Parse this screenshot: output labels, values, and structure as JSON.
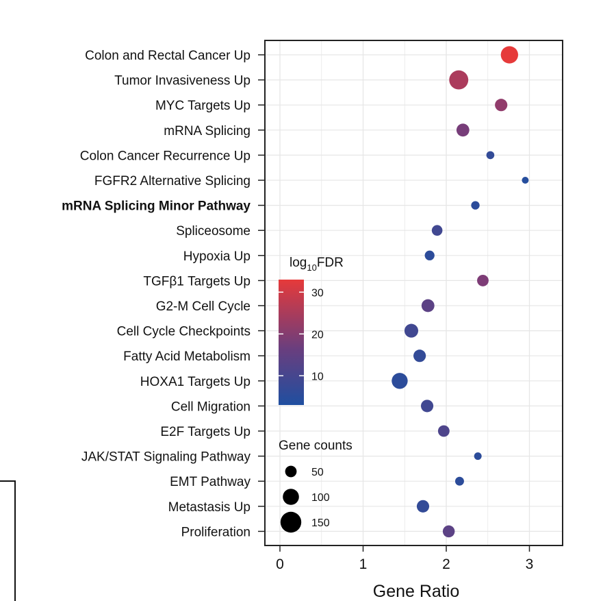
{
  "chart_data": {
    "type": "scatter",
    "subtype": "dot-plot",
    "xlabel": "Gene Ratio",
    "ylabel": "",
    "xlim": [
      -0.2,
      3.4
    ],
    "x_ticks": [
      "0",
      "1",
      "2",
      "3"
    ],
    "x_tick_values": [
      0,
      1,
      2,
      3
    ],
    "grid": true,
    "color_legend": {
      "title_main": "log",
      "title_sub": "10",
      "title_tail": "FDR",
      "min": 3,
      "max": 33,
      "ticks": [
        "10",
        "20",
        "30"
      ],
      "tick_values": [
        10,
        20,
        30
      ],
      "low_color": "#1f4fa0",
      "mid_color": "#7a3c78",
      "high_color": "#e63a3a"
    },
    "size_legend": {
      "title": "Gene counts",
      "labels": [
        "50",
        "100",
        "150"
      ],
      "values": [
        50,
        100,
        150
      ]
    },
    "series": [
      {
        "term": "Colon and Rectal Cancer Up",
        "gene_ratio": 2.76,
        "log10_fdr": 33,
        "gene_count": 130
      },
      {
        "term": "Tumor Invasiveness Up",
        "gene_ratio": 2.15,
        "log10_fdr": 24,
        "gene_count": 150
      },
      {
        "term": "MYC Targets Up",
        "gene_ratio": 2.66,
        "log10_fdr": 20,
        "gene_count": 75
      },
      {
        "term": "mRNA Splicing",
        "gene_ratio": 2.2,
        "log10_fdr": 16,
        "gene_count": 80
      },
      {
        "term": "Colon Cancer Recurrence Up",
        "gene_ratio": 2.53,
        "log10_fdr": 6,
        "gene_count": 25
      },
      {
        "term": "FGFR2 Alternative Splicing",
        "gene_ratio": 2.95,
        "log10_fdr": 4,
        "gene_count": 12
      },
      {
        "term": "mRNA Splicing Minor Pathway",
        "gene_ratio": 2.35,
        "log10_fdr": 5,
        "gene_count": 30
      },
      {
        "term": "Spliceosome",
        "gene_ratio": 1.89,
        "log10_fdr": 8,
        "gene_count": 55
      },
      {
        "term": "Hypoxia Up",
        "gene_ratio": 1.8,
        "log10_fdr": 5,
        "gene_count": 45
      },
      {
        "term": "TGFβ1 Targets Up",
        "gene_ratio": 2.44,
        "log10_fdr": 17,
        "gene_count": 65
      },
      {
        "term": "G2-M Cell Cycle",
        "gene_ratio": 1.78,
        "log10_fdr": 12,
        "gene_count": 80
      },
      {
        "term": "Cell Cycle Checkpoints",
        "gene_ratio": 1.58,
        "log10_fdr": 8,
        "gene_count": 90
      },
      {
        "term": "Fatty Acid Metabolism",
        "gene_ratio": 1.68,
        "log10_fdr": 6,
        "gene_count": 75
      },
      {
        "term": "HOXA1 Targets Up",
        "gene_ratio": 1.44,
        "log10_fdr": 5,
        "gene_count": 115
      },
      {
        "term": "Cell Migration",
        "gene_ratio": 1.77,
        "log10_fdr": 8,
        "gene_count": 75
      },
      {
        "term": "E2F Targets Up",
        "gene_ratio": 1.97,
        "log10_fdr": 10,
        "gene_count": 65
      },
      {
        "term": "JAK/STAT Signaling Pathway",
        "gene_ratio": 2.38,
        "log10_fdr": 5,
        "gene_count": 20
      },
      {
        "term": "EMT Pathway",
        "gene_ratio": 2.16,
        "log10_fdr": 5,
        "gene_count": 35
      },
      {
        "term": "Metastasis Up",
        "gene_ratio": 1.72,
        "log10_fdr": 6,
        "gene_count": 75
      },
      {
        "term": "Proliferation",
        "gene_ratio": 2.03,
        "log10_fdr": 12,
        "gene_count": 70
      }
    ]
  }
}
